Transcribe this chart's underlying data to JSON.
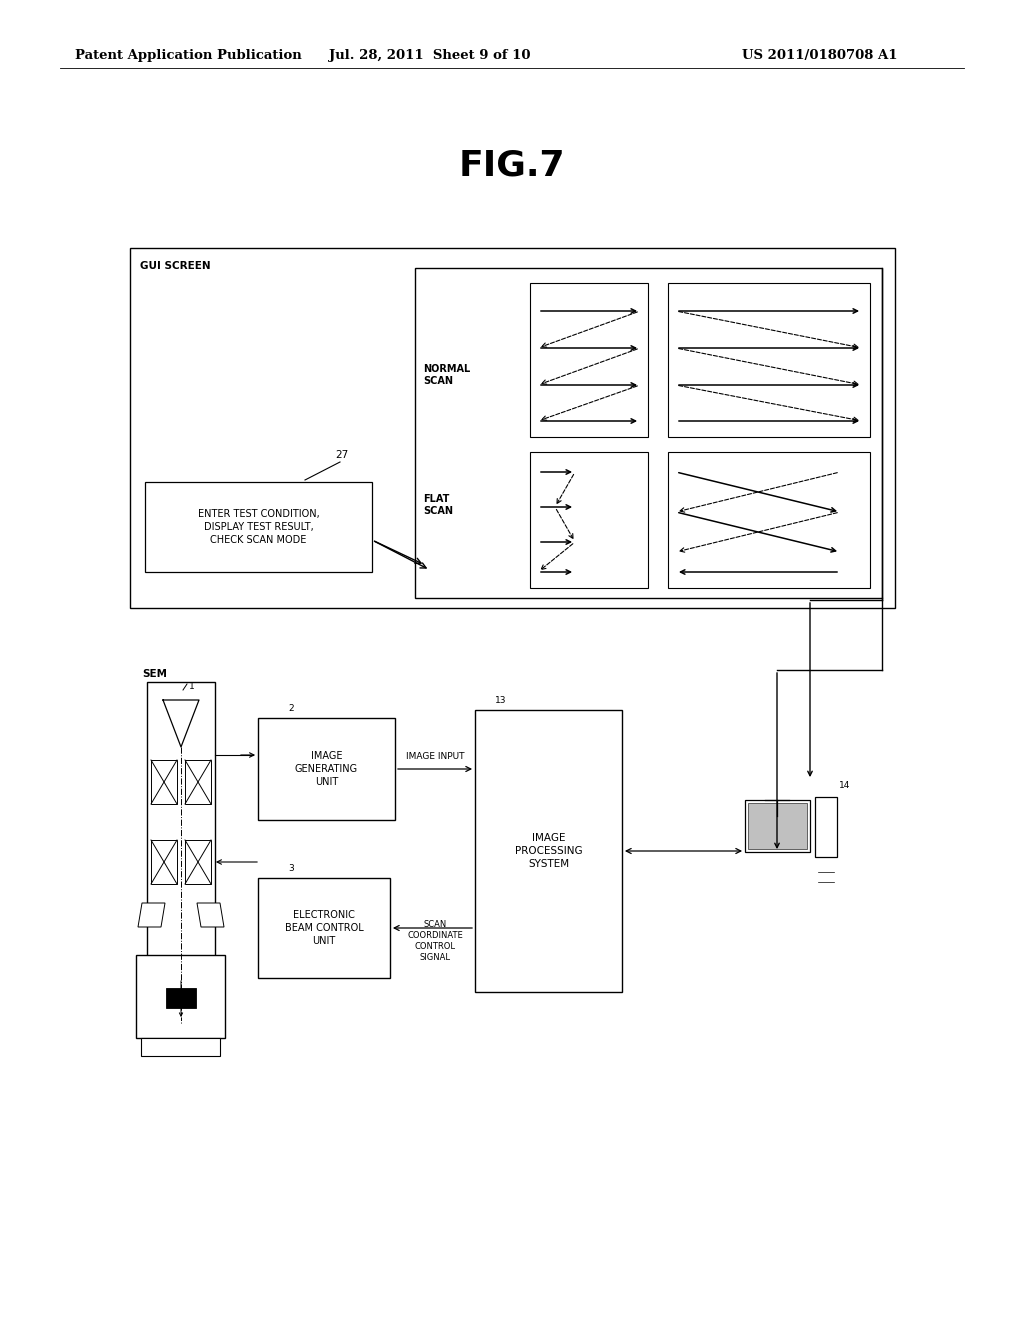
{
  "bg_color": "#ffffff",
  "title": "FIG.7",
  "header_left": "Patent Application Publication",
  "header_center": "Jul. 28, 2011  Sheet 9 of 10",
  "header_right": "US 2011/0180708 A1",
  "header_fontsize": 9.5,
  "title_fontsize": 26,
  "label_fontsize": 7.5,
  "small_fontsize": 6.5
}
